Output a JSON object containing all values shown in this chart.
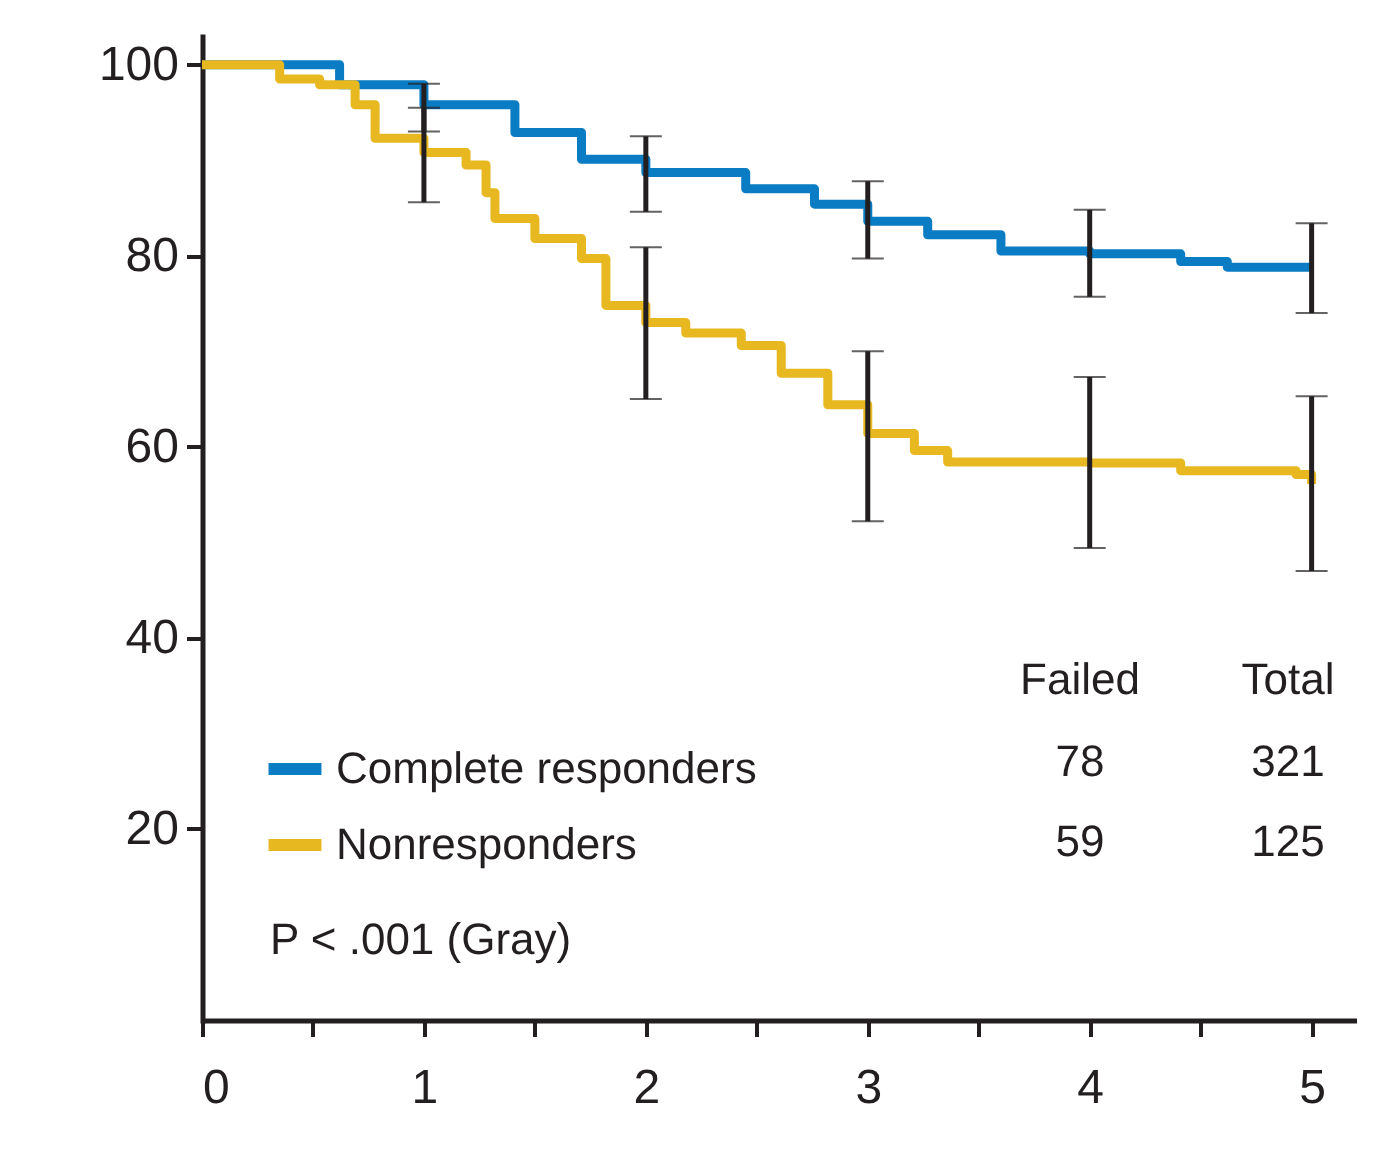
{
  "chart_data": {
    "type": "step",
    "xlim": [
      0,
      5.2
    ],
    "ylim": [
      0,
      103
    ],
    "xticks": [
      {
        "value": 0,
        "label": "0"
      },
      {
        "value": 0.5,
        "label": null
      },
      1,
      {
        "value": 1.5,
        "label": null
      },
      2,
      {
        "value": 2.5,
        "label": null
      },
      3,
      {
        "value": 3.5,
        "label": null
      },
      4,
      {
        "value": 4.5,
        "label": null
      },
      5
    ],
    "yticks": [
      20,
      40,
      60,
      80,
      100
    ],
    "grid": false,
    "marker": "none",
    "line_style": "solid",
    "legend": "bottom left",
    "series": [
      {
        "name": "Complete responders",
        "color": "#0a7cc4",
        "x": [
          0,
          0.35,
          0.62,
          1,
          1.41,
          1.71,
          2,
          2.45,
          2.76,
          3,
          3.27,
          3.6,
          4,
          4.41,
          4.62,
          5
        ],
        "values": [
          100,
          100,
          97.9,
          95.8,
          92.9,
          90.1,
          88.7,
          87,
          85.4,
          83.6,
          82.2,
          80.5,
          80.2,
          79.4,
          78.8,
          78.8
        ],
        "errors": [
          null,
          null,
          null,
          [
            93,
            98
          ],
          null,
          null,
          [
            84.6,
            92.5
          ],
          null,
          null,
          [
            79.7,
            87.8
          ],
          null,
          null,
          [
            75.7,
            84.8
          ],
          null,
          null,
          [
            74,
            83.4
          ]
        ]
      },
      {
        "name": "Nonresponders",
        "color": "#e8b820",
        "x": [
          0,
          0.35,
          0.53,
          0.69,
          0.78,
          1,
          1.19,
          1.28,
          1.32,
          1.5,
          1.71,
          1.82,
          2,
          2.18,
          2.43,
          2.61,
          2.82,
          3,
          3.21,
          3.36,
          4,
          4.41,
          4.93,
          5
        ],
        "values": [
          100,
          98.5,
          97.9,
          95.8,
          92.3,
          90.8,
          89.5,
          86.6,
          83.9,
          81.8,
          79.7,
          74.8,
          73,
          71.9,
          70.6,
          67.7,
          64.4,
          61.4,
          59.6,
          58.4,
          58.3,
          57.5,
          57.1,
          56.1
        ],
        "errors": [
          null,
          null,
          null,
          null,
          null,
          [
            85.6,
            95.5
          ],
          null,
          null,
          null,
          null,
          null,
          null,
          [
            65,
            80.9
          ],
          null,
          null,
          null,
          null,
          [
            52.2,
            70
          ],
          null,
          null,
          [
            49.4,
            67.3
          ],
          null,
          null,
          [
            47,
            65.3
          ]
        ]
      }
    ],
    "annotations": [
      "Failed",
      "Total",
      "78",
      "321",
      "59",
      "125",
      "P < .001 (Gray)"
    ]
  }
}
